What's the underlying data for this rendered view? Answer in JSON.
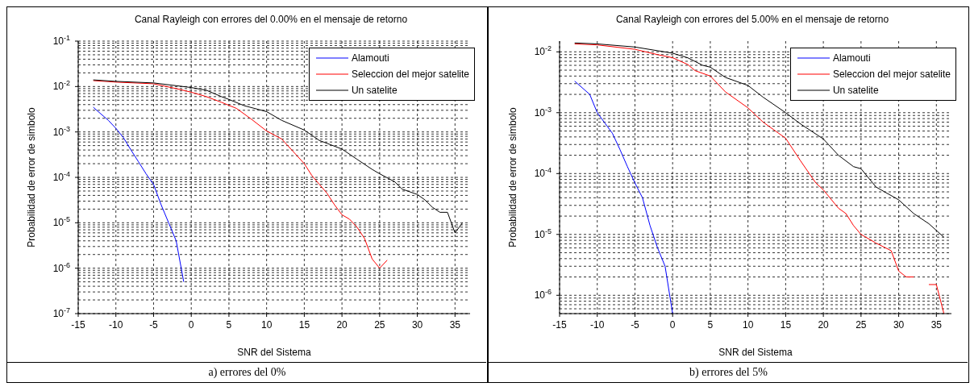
{
  "chart_data": [
    {
      "type": "line",
      "title": "Canal Rayleigh con errores del 0.00% en el mensaje de retorno",
      "xlabel": "SNR del Sistema",
      "ylabel": "Probabilidad de error de simbolo",
      "log": "y",
      "grid": true,
      "legend": "top right",
      "xlim": [
        -15,
        37
      ],
      "xticks": [
        -15,
        -10,
        -5,
        0,
        5,
        10,
        15,
        20,
        25,
        30,
        35
      ],
      "ylim": [
        1e-07,
        0.1
      ],
      "yticks": [
        {
          "value": 1e-07,
          "label": "10$^{-7}$"
        },
        {
          "value": 1e-06,
          "label": "10$^{-6}$"
        },
        {
          "value": 1e-05,
          "label": "10$^{-5}$"
        },
        {
          "value": 0.0001,
          "label": "10$^{-4}$"
        },
        {
          "value": 0.001,
          "label": "10$^{-3}$"
        },
        {
          "value": 0.01,
          "label": "10$^{-2}$"
        },
        {
          "value": 0.1,
          "label": "10$^{-1}$"
        }
      ],
      "annotations": [
        "a) errores del 0%"
      ],
      "series": [
        {
          "name": "Alamouti",
          "color": "#0000ff",
          "x": [
            -13,
            -12,
            -11,
            -10,
            -9,
            -8,
            -7,
            -6,
            -5,
            -4,
            -3,
            -2,
            -1
          ],
          "values": [
            0.0035,
            0.0025,
            0.0018,
            0.0012,
            0.00075,
            0.0004,
            0.00022,
            0.00012,
            7e-05,
            2.5e-05,
            1e-05,
            4e-06,
            5e-07
          ]
        },
        {
          "name": "Seleccion del mejor satelite",
          "color": "#ff0000",
          "x": [
            -13,
            -10,
            -5,
            -2,
            0,
            2,
            4,
            6,
            8,
            10,
            12,
            15,
            16,
            17,
            18,
            19,
            20,
            21,
            22,
            23,
            24,
            25,
            26
          ],
          "values": [
            0.0135,
            0.0125,
            0.0115,
            0.009,
            0.0075,
            0.006,
            0.0045,
            0.0033,
            0.0019,
            0.00105,
            0.0007,
            0.0002,
            0.00011,
            7e-05,
            4.5e-05,
            2.5e-05,
            1.5e-05,
            1.2e-05,
            8e-06,
            4.5e-06,
            1.6e-06,
            1e-06,
            1.5e-06
          ]
        },
        {
          "name": "Un satelite",
          "color": "#000000",
          "x": [
            -13,
            -10,
            -5,
            0,
            2,
            4,
            5,
            7,
            10,
            12,
            15,
            17,
            20,
            22,
            24,
            25,
            27,
            28,
            30,
            31,
            32,
            33,
            34,
            35,
            36
          ],
          "values": [
            0.014,
            0.013,
            0.012,
            0.0095,
            0.0083,
            0.006,
            0.0052,
            0.0038,
            0.0028,
            0.0018,
            0.0011,
            0.00065,
            0.00042,
            0.00025,
            0.00015,
            0.00012,
            8e-05,
            5.5e-05,
            4.2e-05,
            3.2e-05,
            2.2e-05,
            1.7e-05,
            1.7e-05,
            6e-06,
            1e-05
          ]
        }
      ]
    },
    {
      "type": "line",
      "title": "Canal Rayleigh con errores del 5.00% en el mensaje de retorno",
      "xlabel": "SNR del Sistema",
      "ylabel": "Probabilidad de error de simbolo",
      "log": "y",
      "grid": true,
      "legend": "top right",
      "xlim": [
        -15,
        37
      ],
      "xticks": [
        -15,
        -10,
        -5,
        0,
        5,
        10,
        15,
        20,
        25,
        30,
        35
      ],
      "ylim": [
        5e-07,
        0.015
      ],
      "yticks": [
        {
          "value": 1e-06,
          "label": "10$^{-6}$"
        },
        {
          "value": 1e-05,
          "label": "10$^{-5}$"
        },
        {
          "value": 0.0001,
          "label": "10$^{-4}$"
        },
        {
          "value": 0.001,
          "label": "10$^{-3}$"
        },
        {
          "value": 0.01,
          "label": "10$^{-2}$"
        }
      ],
      "annotations": [
        "b) errores del 5%"
      ],
      "series": [
        {
          "name": "Alamouti",
          "color": "#0000ff",
          "x": [
            -13,
            -11,
            -10,
            -8,
            -7,
            -6,
            -5,
            -4,
            -3,
            -2,
            -1,
            0
          ],
          "values": [
            0.0033,
            0.002,
            0.001,
            0.00046,
            0.00025,
            0.00013,
            7e-05,
            4e-05,
            1.4e-05,
            6e-06,
            3e-06,
            5e-07
          ]
        },
        {
          "name": "Seleccion del mejor satelite",
          "color": "#ff0000",
          "x": [
            -13,
            -10,
            -5,
            -2,
            0,
            2,
            3,
            5,
            7,
            10,
            12,
            15,
            17,
            19,
            20,
            22,
            23,
            24,
            25,
            27,
            29,
            30,
            31,
            32,
            33,
            34,
            35,
            36
          ],
          "values": [
            0.0135,
            0.013,
            0.011,
            0.009,
            0.008,
            0.0062,
            0.0049,
            0.004,
            0.0022,
            0.0012,
            0.0007,
            0.00038,
            0.00016,
            7e-05,
            5.4e-05,
            2.7e-05,
            2.2e-05,
            1.4e-05,
            1e-05,
            7.2e-06,
            5.4e-06,
            2.5e-06,
            2e-06,
            2e-06,
            null,
            1.5e-06,
            1.5e-06,
            5e-07
          ]
        },
        {
          "name": "Un satelite",
          "color": "#000000",
          "x": [
            -13,
            -10,
            -5,
            0,
            2,
            4,
            5,
            7,
            10,
            12,
            15,
            17,
            20,
            22,
            24,
            25,
            27,
            30,
            32,
            34,
            36
          ],
          "values": [
            0.014,
            0.0135,
            0.012,
            0.0095,
            0.008,
            0.006,
            0.0056,
            0.0038,
            0.0028,
            0.0018,
            0.001,
            0.00065,
            0.00037,
            0.0002,
            0.00013,
            0.00012,
            6e-05,
            3.7e-05,
            2.2e-05,
            1.5e-05,
            9e-06
          ]
        }
      ]
    }
  ]
}
